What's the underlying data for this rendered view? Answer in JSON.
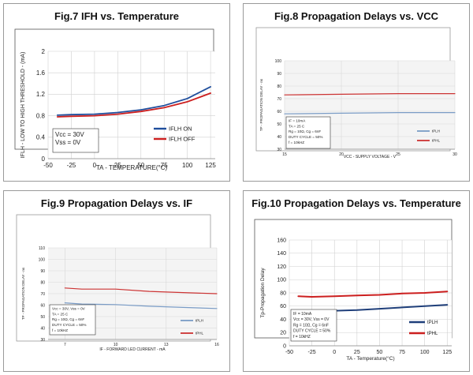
{
  "page": {
    "background": "#ffffff",
    "panel_border": "#9a9a9a"
  },
  "figures": [
    {
      "title": "Fig.7 IFH vs. Temperature"
    },
    {
      "title": "Fig.8 Propagation Delays vs. VCC"
    },
    {
      "title": "Fig.9 Propagation Delays vs. IF"
    },
    {
      "title": "Fig.10 Propagation Delays vs. Temperature"
    }
  ],
  "chart_data": [
    {
      "type": "line",
      "title": "Fig.7 IFH vs. Temperature",
      "xlabel": "TA - TEMPERATURE(°C)",
      "ylabel": "IFLH - LOW TO HIGH THRESHOLD - (mA)",
      "xlim": [
        -50,
        130
      ],
      "ylim": [
        0,
        2
      ],
      "xticks": [
        "-50",
        "-25",
        "0",
        "25",
        "50",
        "75",
        "100",
        "125"
      ],
      "yticks": [
        "0",
        "0.4",
        "0.8",
        "1.2",
        "1.6",
        "2"
      ],
      "grid": true,
      "legend_position": "right",
      "conditions": [
        "Vcc = 30V",
        "Vss = 0V"
      ],
      "series": [
        {
          "name": "IFLH ON",
          "color": "#1f4e9c",
          "x": [
            -40,
            -25,
            0,
            25,
            50,
            75,
            100,
            125
          ],
          "y": [
            0.81,
            0.82,
            0.83,
            0.86,
            0.91,
            0.99,
            1.12,
            1.34
          ]
        },
        {
          "name": "IFLH OFF",
          "color": "#cc1f1f",
          "x": [
            -40,
            -25,
            0,
            25,
            50,
            75,
            100,
            125
          ],
          "y": [
            0.78,
            0.79,
            0.8,
            0.83,
            0.88,
            0.95,
            1.06,
            1.22
          ]
        }
      ]
    },
    {
      "type": "line",
      "title": "Fig.8 Propagation Delays vs. VCC",
      "xlabel": "VCC - SUPPLY VOLTAGE - V",
      "ylabel": "TP - PROPAGATION DELAY - ns",
      "xlim": [
        15,
        30
      ],
      "ylim": [
        30,
        100
      ],
      "xticks": [
        "15",
        "20",
        "25",
        "30"
      ],
      "yticks": [
        "30",
        "40",
        "50",
        "60",
        "70",
        "80",
        "90",
        "100"
      ],
      "grid": true,
      "legend_position": "right",
      "conditions": [
        "IF = 10mA",
        "TA = 25 C",
        "Rg = 10Ω, Cg = 6nF",
        "DUTY CYCLE = 50%",
        "f = 10kHZ"
      ],
      "series": [
        {
          "name": "tPLH",
          "color": "#7a9cc6",
          "x": [
            15,
            20,
            25,
            30
          ],
          "y": [
            58,
            58.5,
            59,
            59
          ]
        },
        {
          "name": "tPHL",
          "color": "#cc3333",
          "x": [
            15,
            20,
            25,
            30
          ],
          "y": [
            73,
            73.5,
            74,
            74
          ]
        }
      ]
    },
    {
      "type": "line",
      "title": "Fig.9 Propagation Delays vs. IF",
      "xlabel": "IF - FORWARD LED CURRENT - mA",
      "ylabel": "TP - PROPAGATION DELAY - ns",
      "xlim": [
        6,
        16
      ],
      "ylim": [
        30,
        110
      ],
      "xticks": [
        "7",
        "10",
        "13",
        "16"
      ],
      "yticks": [
        "30",
        "40",
        "50",
        "60",
        "70",
        "80",
        "90",
        "100",
        "110"
      ],
      "grid": true,
      "legend_position": "right",
      "conditions": [
        "Vcc = 30V, Vss = 0V",
        "TA = 25 C",
        "Rg = 10Ω, Cg = 6nF",
        "DUTY CYCLE = 50%",
        "f = 10kHZ"
      ],
      "series": [
        {
          "name": "tPLH",
          "color": "#7a9cc6",
          "x": [
            7,
            8,
            10,
            12,
            14,
            16
          ],
          "y": [
            62,
            61,
            60.5,
            59,
            58,
            57
          ]
        },
        {
          "name": "tPHL",
          "color": "#cc3333",
          "x": [
            7,
            8,
            10,
            12,
            14,
            16
          ],
          "y": [
            75,
            74,
            74,
            72,
            71,
            70
          ]
        }
      ]
    },
    {
      "type": "line",
      "title": "Fig.10 Propagation Delays vs. Temperature",
      "xlabel": "TA - Temperature(°C)",
      "ylabel": "Tp-Propagation Delay",
      "xlim": [
        -50,
        130
      ],
      "ylim": [
        0,
        160
      ],
      "xticks": [
        "-50",
        "-25",
        "0",
        "25",
        "50",
        "75",
        "100",
        "125"
      ],
      "yticks": [
        "0",
        "20",
        "40",
        "60",
        "80",
        "100",
        "120",
        "140",
        "160"
      ],
      "grid": true,
      "legend_position": "right",
      "conditions": [
        "IF = 10mA",
        "Vcc = 30V, Vss = 0V",
        "Rg = 10Ω, Cg = 6nF",
        "DUTY CYCLE = 50%",
        "f = 10kHZ"
      ],
      "series": [
        {
          "name": "tPLH",
          "color": "#1f3f7a",
          "x": [
            -40,
            -25,
            0,
            25,
            50,
            75,
            100,
            125
          ],
          "y": [
            52,
            52,
            53,
            54,
            56,
            58,
            60,
            62
          ]
        },
        {
          "name": "tPHL",
          "color": "#cc1f1f",
          "x": [
            -40,
            -25,
            0,
            25,
            50,
            75,
            100,
            125
          ],
          "y": [
            75,
            74,
            75,
            76,
            77,
            79,
            80,
            82
          ]
        }
      ]
    }
  ]
}
